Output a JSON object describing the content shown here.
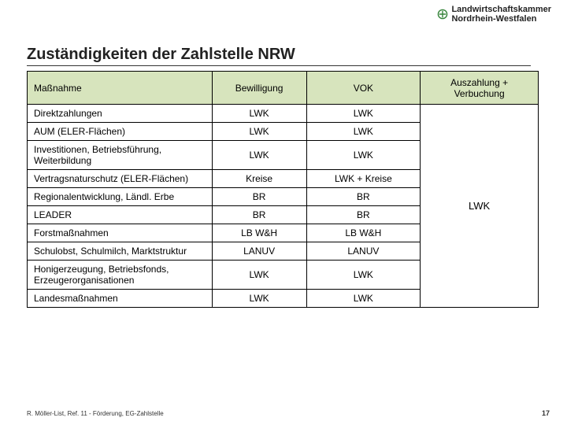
{
  "logo": {
    "line1": "Landwirtschaftskammer",
    "line2": "Nordrhein-Westfalen",
    "icon_color": "#36843a"
  },
  "title": "Zuständigkeiten der Zahlstelle NRW",
  "table": {
    "header_bg": "#d7e4bd",
    "columns": [
      "Maßnahme",
      "Bewilligung",
      "VOK",
      "Auszahlung + Verbuchung"
    ],
    "rows": [
      {
        "label": "Direktzahlungen",
        "c1": "LWK",
        "c2": "LWK"
      },
      {
        "label": "AUM (ELER-Flächen)",
        "c1": "LWK",
        "c2": "LWK"
      },
      {
        "label": "Investitionen, Betriebsführung, Weiterbildung",
        "c1": "LWK",
        "c2": "LWK"
      },
      {
        "label": "Vertragsnaturschutz (ELER-Flächen)",
        "c1": "Kreise",
        "c2": "LWK + Kreise"
      },
      {
        "label": "Regionalentwicklung, Ländl. Erbe",
        "c1": "BR",
        "c2": "BR"
      },
      {
        "label": "LEADER",
        "c1": "BR",
        "c2": "BR"
      },
      {
        "label": "Forstmaßnahmen",
        "c1": "LB W&H",
        "c2": "LB W&H"
      },
      {
        "label": "Schulobst, Schulmilch, Marktstruktur",
        "c1": "LANUV",
        "c2": "LANUV"
      },
      {
        "label": "Honigerzeugung, Betriebsfonds, Erzeugerorganisationen",
        "c1": "LWK",
        "c2": "LWK"
      },
      {
        "label": "Landesmaßnahmen",
        "c1": "LWK",
        "c2": "LWK"
      }
    ],
    "merged_col3": "LWK"
  },
  "footer": "R. Möller-List, Ref. 11 - Förderung, EG-Zahlstelle",
  "page": "17"
}
